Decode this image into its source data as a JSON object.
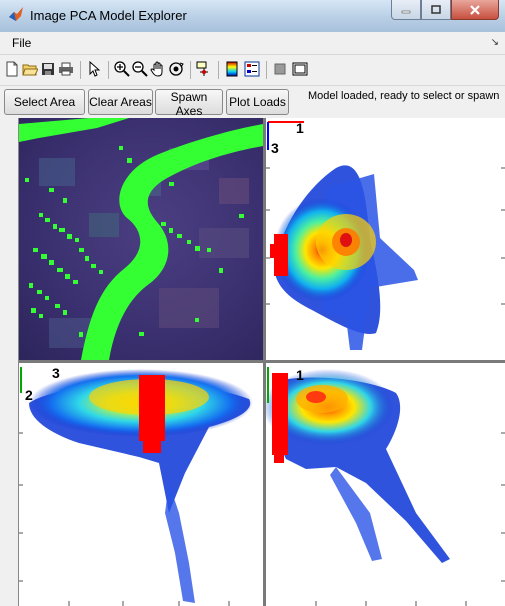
{
  "window": {
    "title": "Image PCA Model Explorer"
  },
  "menu": {
    "file_label": "File"
  },
  "toolbar": {
    "icons": [
      "new-file-icon",
      "open-folder-icon",
      "save-icon",
      "print-icon",
      "pointer-icon",
      "zoom-in-icon",
      "zoom-out-icon",
      "pan-icon",
      "rotate-3d-icon",
      "data-cursor-icon",
      "colorbar-icon",
      "legend-icon",
      "hide-plot-tools-icon",
      "show-plot-tools-icon"
    ]
  },
  "controls": {
    "select_area": "Select Area",
    "clear_areas": "Clear Areas",
    "spawn_axes": "Spawn Axes",
    "plot_loads": "Plot Loads",
    "status": "Model loaded, ready to select or spawn"
  },
  "panels": {
    "top_right": {
      "x_component": "1",
      "y_component": "3"
    },
    "bottom_left": {
      "x_component": "3",
      "y_component": "2"
    },
    "bottom_right": {
      "x_component": "1"
    }
  },
  "colors": {
    "selection": "#33ff33",
    "selected_points": "#ff0000",
    "image_bg": "#3a2f6e"
  }
}
